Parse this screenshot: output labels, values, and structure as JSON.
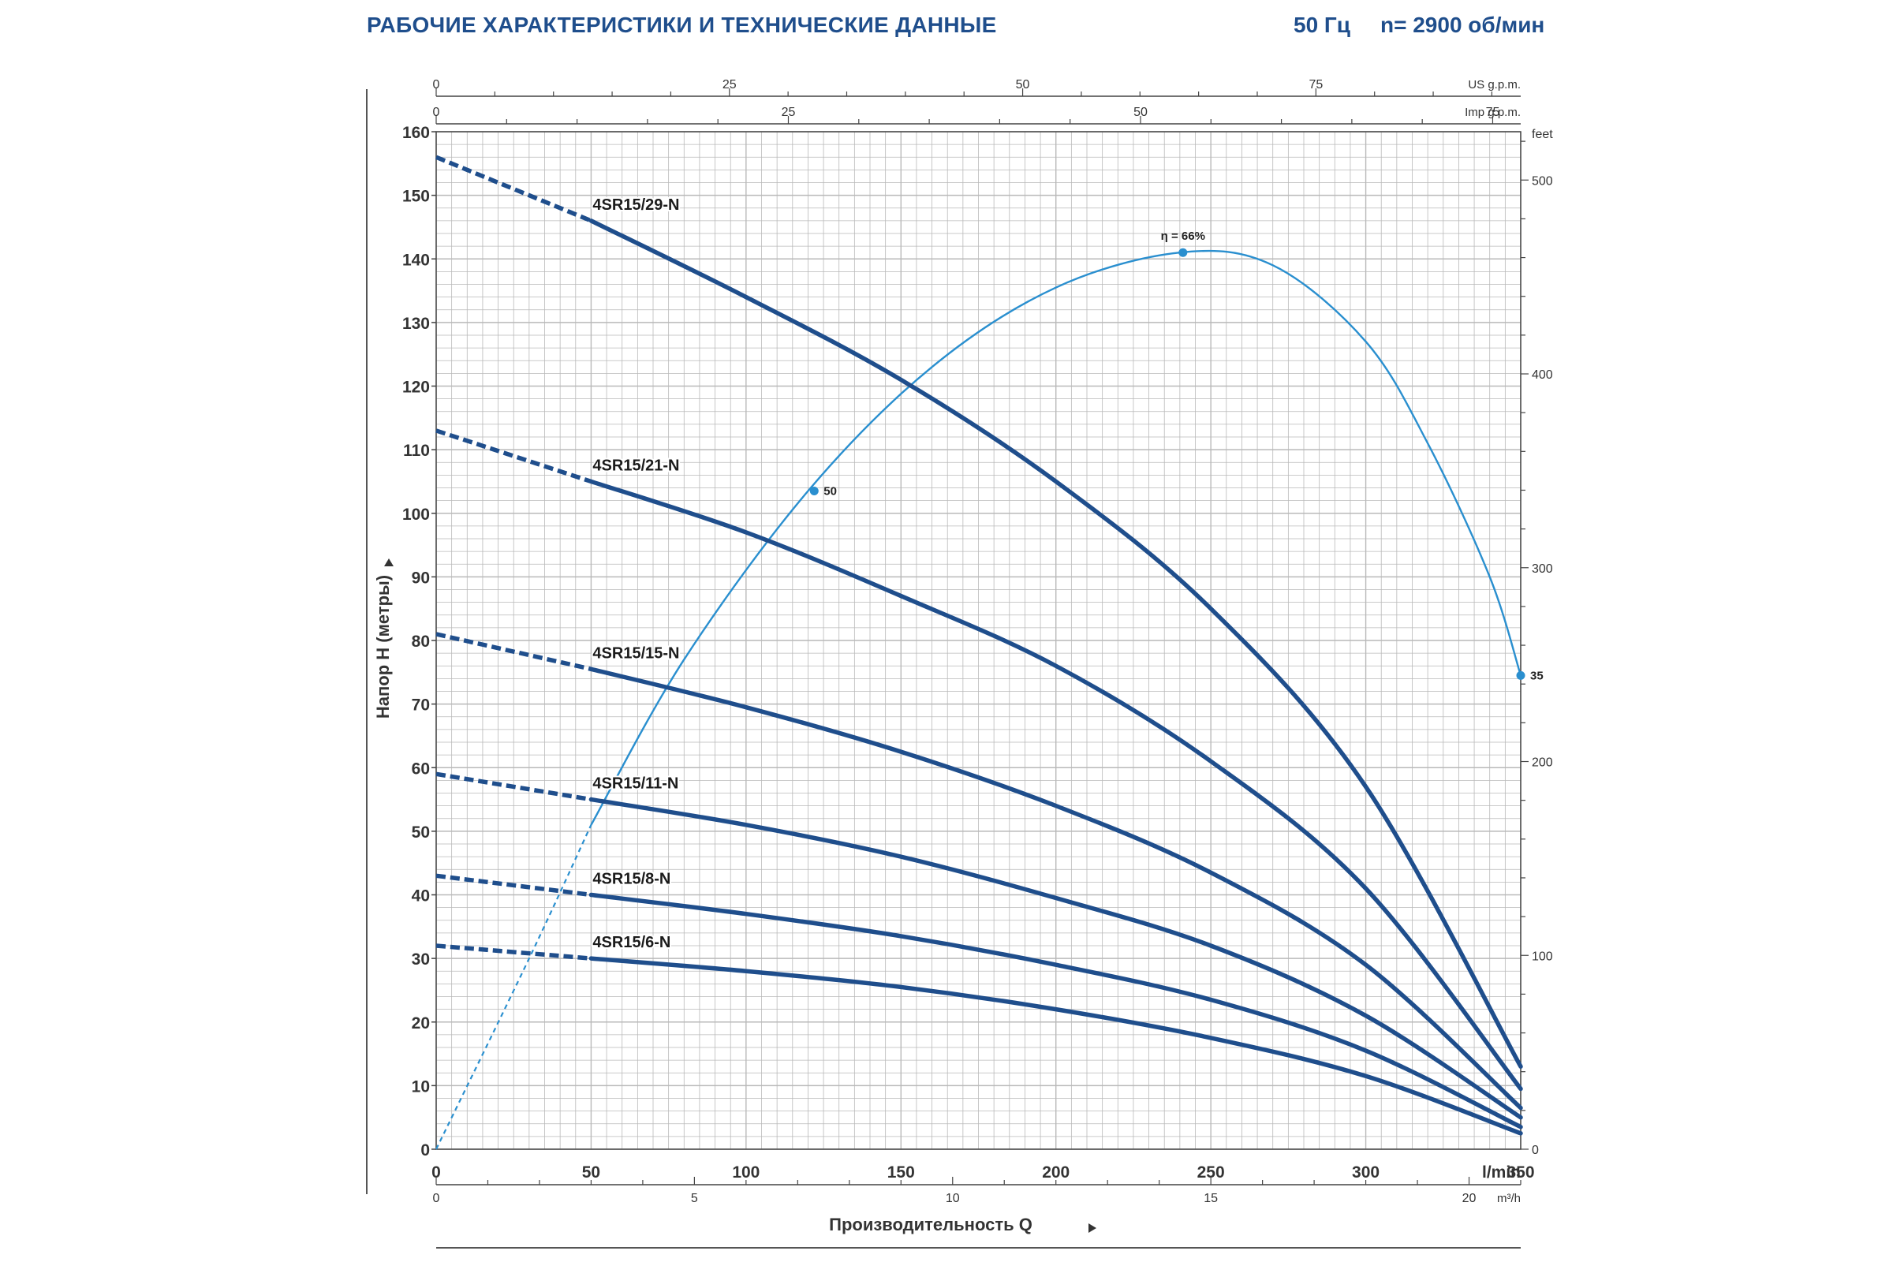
{
  "header": {
    "title": "РАБОЧИЕ ХАРАКТЕРИСТИКИ И ТЕХНИЧЕСКИЕ ДАННЫЕ",
    "frequency": "50 Гц",
    "speed": "n= 2900 об/мин"
  },
  "colors": {
    "curve": "#1f4e8c",
    "efficiency": "#2a8fcf",
    "grid": "#b9b9b9",
    "text": "#333333"
  },
  "chart_data": {
    "type": "line",
    "ylabel": "Напор H (метры)",
    "xlabel": "Производительность Q",
    "x_unit": "l/min",
    "ylim": [
      0,
      160
    ],
    "xlim": [
      0,
      350
    ],
    "y_ticks": [
      0,
      10,
      20,
      30,
      40,
      50,
      60,
      70,
      80,
      90,
      100,
      110,
      120,
      130,
      140,
      150,
      160
    ],
    "x_ticks": [
      0,
      50,
      100,
      150,
      200,
      250,
      300,
      350
    ],
    "secondary_axes": {
      "feet": {
        "label": "feet",
        "ticks": [
          0,
          100,
          200,
          300,
          400,
          500
        ]
      },
      "us_gpm": {
        "label": "US g.p.m.",
        "ticks": [
          0,
          25,
          50,
          75
        ]
      },
      "imp_gpm": {
        "label": "Imp g.p.m.",
        "ticks": [
          0,
          25,
          50,
          75
        ]
      },
      "m3h": {
        "label": "m³/h",
        "ticks": [
          0,
          5,
          10,
          15,
          20
        ]
      }
    },
    "series": [
      {
        "name": "4SR15/29-N",
        "dashed": [
          [
            0,
            156
          ],
          [
            50,
            146
          ]
        ],
        "solid": [
          [
            50,
            146
          ],
          [
            100,
            134
          ],
          [
            150,
            121
          ],
          [
            200,
            105
          ],
          [
            250,
            85
          ],
          [
            300,
            57
          ],
          [
            350,
            13
          ]
        ]
      },
      {
        "name": "4SR15/21-N",
        "dashed": [
          [
            0,
            113
          ],
          [
            50,
            105
          ]
        ],
        "solid": [
          [
            50,
            105
          ],
          [
            100,
            97
          ],
          [
            150,
            87
          ],
          [
            200,
            76
          ],
          [
            250,
            61
          ],
          [
            300,
            41
          ],
          [
            350,
            9.5
          ]
        ]
      },
      {
        "name": "4SR15/15-N",
        "dashed": [
          [
            0,
            81
          ],
          [
            50,
            75.5
          ]
        ],
        "solid": [
          [
            50,
            75.5
          ],
          [
            100,
            69.5
          ],
          [
            150,
            62.5
          ],
          [
            200,
            54
          ],
          [
            250,
            43.5
          ],
          [
            300,
            29
          ],
          [
            350,
            6.5
          ]
        ]
      },
      {
        "name": "4SR15/11-N",
        "dashed": [
          [
            0,
            59
          ],
          [
            50,
            55
          ]
        ],
        "solid": [
          [
            50,
            55
          ],
          [
            100,
            51
          ],
          [
            150,
            46
          ],
          [
            200,
            39.5
          ],
          [
            250,
            32
          ],
          [
            300,
            21
          ],
          [
            350,
            5
          ]
        ]
      },
      {
        "name": "4SR15/8-N",
        "dashed": [
          [
            0,
            43
          ],
          [
            50,
            40
          ]
        ],
        "solid": [
          [
            50,
            40
          ],
          [
            100,
            37
          ],
          [
            150,
            33.5
          ],
          [
            200,
            29
          ],
          [
            250,
            23.5
          ],
          [
            300,
            15.5
          ],
          [
            350,
            3.5
          ]
        ]
      },
      {
        "name": "4SR15/6-N",
        "dashed": [
          [
            0,
            32
          ],
          [
            50,
            30
          ]
        ],
        "solid": [
          [
            50,
            30
          ],
          [
            100,
            28
          ],
          [
            150,
            25.5
          ],
          [
            200,
            22
          ],
          [
            250,
            17.5
          ],
          [
            300,
            11.5
          ],
          [
            350,
            2.5
          ]
        ]
      }
    ],
    "efficiency_curve": {
      "name": "η",
      "dashed": [
        [
          0,
          0
        ],
        [
          30,
          30
        ],
        [
          50,
          51
        ]
      ],
      "solid": [
        [
          50,
          51
        ],
        [
          80,
          77
        ],
        [
          120,
          103.5
        ],
        [
          160,
          123
        ],
        [
          200,
          135.5
        ],
        [
          240,
          141
        ],
        [
          270,
          139
        ],
        [
          300,
          127
        ],
        [
          320,
          111
        ],
        [
          340,
          90
        ],
        [
          350,
          74.5
        ]
      ],
      "markers": [
        {
          "x": 122,
          "y": 103.5,
          "label": "50"
        },
        {
          "x": 241,
          "y": 141,
          "label": "η = 66%"
        },
        {
          "x": 350,
          "y": 74.5,
          "label": "35"
        }
      ]
    }
  }
}
